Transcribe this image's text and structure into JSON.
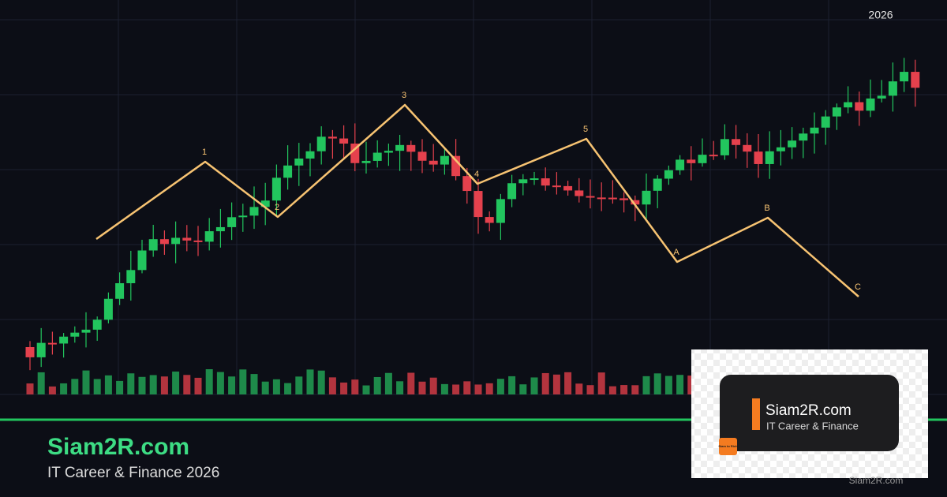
{
  "header": {
    "year": "2026"
  },
  "wave_labels": [
    "1",
    "2",
    "3",
    "4",
    "5",
    "A",
    "B",
    "C"
  ],
  "footer": {
    "title": "Siam2R.com",
    "subtitle": "IT Career & Finance 2026"
  },
  "logo": {
    "title": "Siam2R.com",
    "subtitle": "IT Career & Finance",
    "badge": "Siam to Rich",
    "watermark": "Siam2R.com"
  }
}
